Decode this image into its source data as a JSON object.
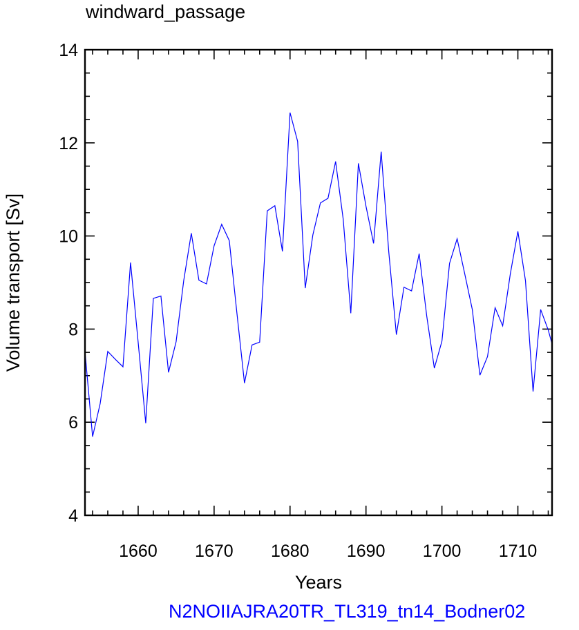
{
  "chart_data": {
    "type": "line",
    "title": "windward_passage",
    "xlabel": "Years",
    "ylabel": "Volume transport [Sv]",
    "xlim": [
      1653,
      1714.5
    ],
    "ylim": [
      4,
      14
    ],
    "x_ticks": [
      1660,
      1670,
      1680,
      1690,
      1700,
      1710
    ],
    "y_ticks": [
      4,
      6,
      8,
      10,
      12,
      14
    ],
    "grid": false,
    "series_color": "#0000ff",
    "series": [
      {
        "x": [
          1653,
          1654,
          1655,
          1656,
          1657,
          1658,
          1659,
          1660,
          1661,
          1662,
          1663,
          1664,
          1665,
          1666,
          1667,
          1668,
          1669,
          1670,
          1671,
          1672,
          1673,
          1674,
          1675,
          1676,
          1677,
          1678,
          1679,
          1680,
          1681,
          1682,
          1683,
          1684,
          1685,
          1686,
          1687,
          1688,
          1689,
          1690,
          1691,
          1692,
          1693,
          1694,
          1695,
          1696,
          1697,
          1698,
          1699,
          1700,
          1701,
          1702,
          1703,
          1704,
          1705,
          1706,
          1707,
          1708,
          1709,
          1710,
          1711,
          1712,
          1713,
          1714,
          1714.5
        ],
        "y": [
          7.52,
          5.69,
          6.4,
          7.52,
          7.35,
          7.19,
          9.43,
          7.72,
          5.98,
          8.66,
          8.71,
          7.07,
          7.73,
          9.04,
          10.06,
          9.05,
          8.97,
          9.79,
          10.25,
          9.9,
          8.35,
          6.84,
          7.66,
          7.72,
          10.54,
          10.65,
          9.67,
          12.65,
          12.03,
          8.88,
          10.02,
          10.71,
          10.81,
          11.6,
          10.36,
          8.34,
          11.56,
          10.64,
          9.84,
          11.81,
          9.66,
          7.88,
          8.9,
          8.82,
          9.62,
          8.28,
          7.16,
          7.74,
          9.41,
          9.94,
          9.19,
          8.42,
          7.01,
          7.41,
          8.46,
          8.07,
          9.18,
          10.1,
          9.04,
          6.66,
          8.42,
          7.98,
          7.68
        ]
      }
    ]
  },
  "footer_text": "N2NOIIAJRA20TR_TL319_tn14_Bodner02",
  "footer_color": "#0000ff"
}
